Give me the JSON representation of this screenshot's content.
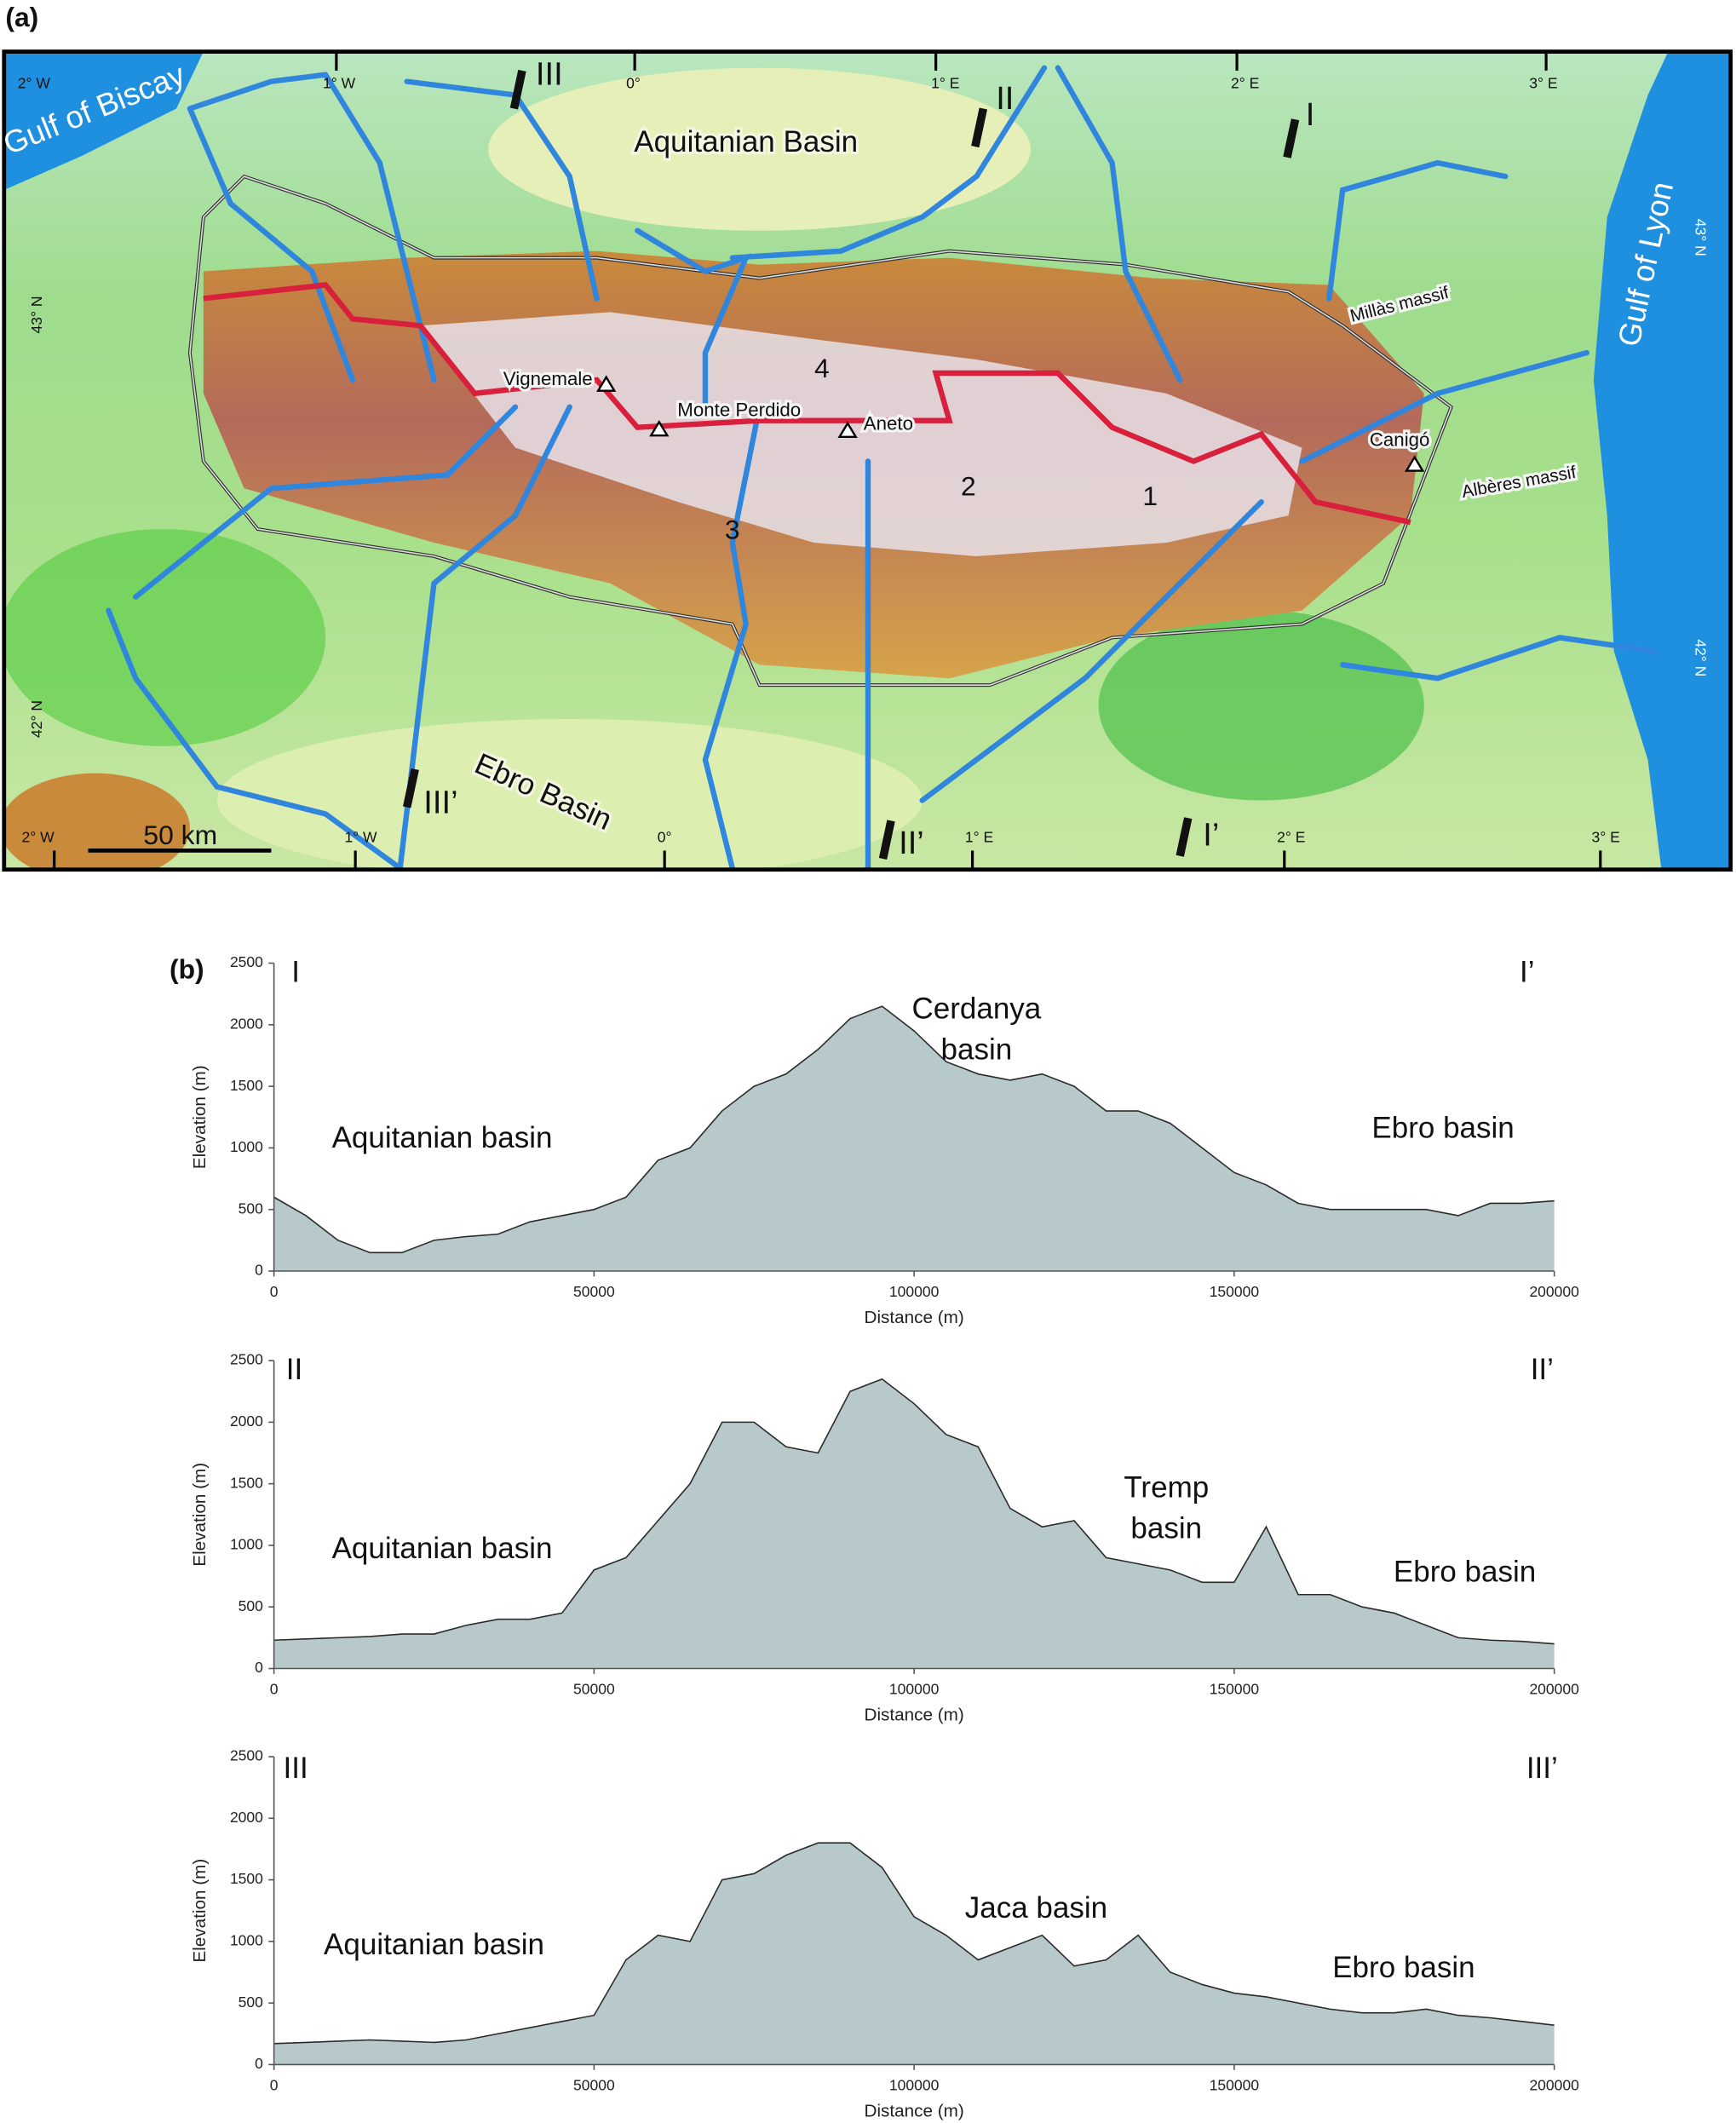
{
  "map": {
    "panel_label": "(a)",
    "places": [
      "Gulf of Biscay",
      "Aquitanian Basin",
      "Gulf of Lyon",
      "Ebro Basin",
      "Millàs massif",
      "Canigó",
      "Albères massif",
      "Vignemale",
      "Monte Perdido",
      "Aneto"
    ],
    "catchments": [
      "1",
      "2",
      "3",
      "4"
    ],
    "scale_bar": "50 km",
    "top_coords": [
      "2° W",
      "1° W",
      "0°",
      "1° E",
      "2° E",
      "3° E"
    ],
    "bottom_coords": [
      "2° W",
      "1° W",
      "0°",
      "1° E",
      "2° E",
      "3° E"
    ],
    "left_coords": [
      "43° N",
      "42° N"
    ],
    "right_coords": [
      "43° N",
      "42° N"
    ],
    "sections_start": [
      "III",
      "II",
      "I"
    ],
    "sections_end": [
      "III’",
      "II’",
      "I’"
    ]
  },
  "chart_data": [
    {
      "type": "area",
      "panel_label": "(b)",
      "x_label": "Distance (m)",
      "y_label": "Elevation (m)",
      "annotations": [
        [
          "I"
        ],
        [
          "I’"
        ],
        [
          "Aquitanian basin"
        ],
        [
          "Cerdanya",
          "basin"
        ],
        [
          "Ebro basin"
        ]
      ],
      "x": [
        0,
        5000,
        10000,
        15000,
        20000,
        25000,
        30000,
        35000,
        40000,
        45000,
        50000,
        55000,
        60000,
        65000,
        70000,
        75000,
        80000,
        85000,
        90000,
        95000,
        100000,
        105000,
        110000,
        115000,
        120000,
        125000,
        130000,
        135000,
        140000,
        145000,
        150000,
        155000,
        160000,
        165000,
        170000,
        175000,
        180000,
        185000,
        190000,
        195000,
        200000
      ],
      "values": [
        600,
        450,
        250,
        150,
        150,
        250,
        280,
        300,
        400,
        450,
        500,
        600,
        900,
        1000,
        1300,
        1500,
        1600,
        1800,
        2050,
        2150,
        1950,
        1700,
        1600,
        1550,
        1600,
        1500,
        1300,
        1300,
        1200,
        1000,
        800,
        700,
        550,
        500,
        500,
        500,
        500,
        450,
        550,
        550,
        570
      ],
      "color": "#b8c9cc",
      "line_color": "#2a2a2a",
      "xlim": [
        0,
        200000
      ],
      "ylim": [
        0,
        2500
      ],
      "xticks": [
        0,
        50000,
        100000,
        150000,
        200000
      ],
      "yticks": [
        0,
        500,
        1000,
        1500,
        2000,
        2500
      ]
    },
    {
      "type": "area",
      "x_label": "Distance (m)",
      "y_label": "Elevation (m)",
      "annotations": [
        [
          "II"
        ],
        [
          "II’"
        ],
        [
          "Aquitanian basin"
        ],
        [
          "Tremp",
          "basin"
        ],
        [
          "Ebro basin"
        ]
      ],
      "x": [
        0,
        5000,
        10000,
        15000,
        20000,
        25000,
        30000,
        35000,
        40000,
        45000,
        50000,
        55000,
        60000,
        65000,
        70000,
        75000,
        80000,
        85000,
        90000,
        95000,
        100000,
        105000,
        110000,
        115000,
        120000,
        125000,
        130000,
        135000,
        140000,
        145000,
        150000,
        155000,
        160000,
        165000,
        170000,
        175000,
        180000,
        185000,
        190000,
        195000,
        200000
      ],
      "values": [
        230,
        240,
        250,
        260,
        280,
        280,
        350,
        400,
        400,
        450,
        800,
        900,
        1200,
        1500,
        2000,
        2000,
        1800,
        1750,
        2250,
        2350,
        2150,
        1900,
        1800,
        1300,
        1150,
        1200,
        900,
        850,
        800,
        700,
        700,
        1150,
        600,
        600,
        500,
        450,
        350,
        250,
        230,
        220,
        200
      ],
      "color": "#b8c9cc",
      "line_color": "#2a2a2a",
      "xlim": [
        0,
        200000
      ],
      "ylim": [
        0,
        2500
      ],
      "xticks": [
        0,
        50000,
        100000,
        150000,
        200000
      ],
      "yticks": [
        0,
        500,
        1000,
        1500,
        2000,
        2500
      ]
    },
    {
      "type": "area",
      "x_label": "Distance (m)",
      "y_label": "Elevation (m)",
      "annotations": [
        [
          "III"
        ],
        [
          "III’"
        ],
        [
          "Aquitanian basin"
        ],
        [
          "Jaca basin"
        ],
        [
          "Ebro basin"
        ]
      ],
      "x": [
        0,
        5000,
        10000,
        15000,
        20000,
        25000,
        30000,
        35000,
        40000,
        45000,
        50000,
        55000,
        60000,
        65000,
        70000,
        75000,
        80000,
        85000,
        90000,
        95000,
        100000,
        105000,
        110000,
        115000,
        120000,
        125000,
        130000,
        135000,
        140000,
        145000,
        150000,
        155000,
        160000,
        165000,
        170000,
        175000,
        180000,
        185000,
        190000,
        195000,
        200000
      ],
      "values": [
        170,
        180,
        190,
        200,
        190,
        180,
        200,
        250,
        300,
        350,
        400,
        850,
        1050,
        1000,
        1500,
        1550,
        1700,
        1800,
        1800,
        1600,
        1200,
        1050,
        850,
        950,
        1050,
        800,
        850,
        1050,
        750,
        650,
        580,
        550,
        500,
        450,
        420,
        420,
        450,
        400,
        380,
        350,
        320
      ],
      "color": "#b8c9cc",
      "line_color": "#2a2a2a",
      "xlim": [
        0,
        200000
      ],
      "ylim": [
        0,
        2500
      ],
      "xticks": [
        0,
        50000,
        100000,
        150000,
        200000
      ],
      "yticks": [
        0,
        500,
        1000,
        1500,
        2000,
        2500
      ]
    }
  ]
}
